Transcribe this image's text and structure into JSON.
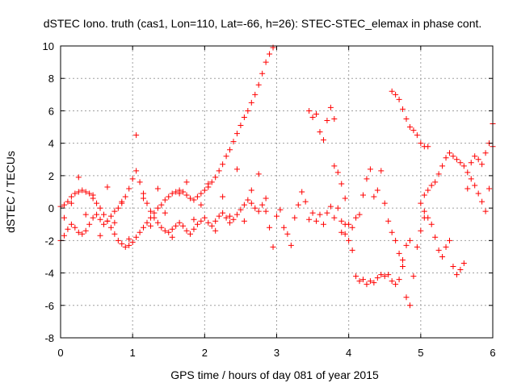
{
  "chart_data": {
    "type": "scatter",
    "title": "dSTEC Iono. truth (cas1, Lon=110, Lat=-66, h=26): STEC-STEC_elemax in phase cont.",
    "xlabel": "GPS time / hours of day 081 of year 2015",
    "ylabel": "dSTEC  / TECUs",
    "xlim": [
      0,
      6
    ],
    "ylim": [
      -8,
      10
    ],
    "xticks": [
      "0",
      "1",
      "2",
      "3",
      "4",
      "5",
      "6"
    ],
    "yticks": [
      "-8",
      "-6",
      "-4",
      "-2",
      "0",
      "2",
      "4",
      "6",
      "8",
      "10"
    ],
    "grid": true,
    "marker": "+",
    "color": "#ff0000",
    "series": [
      {
        "x": [
          0.0,
          0.05,
          0.1,
          0.15,
          0.2,
          0.25,
          0.3,
          0.35,
          0.4,
          0.45,
          0.5,
          0.55,
          0.6,
          0.65,
          0.7,
          0.75,
          0.8,
          0.85,
          0.9,
          0.95,
          1.0,
          1.05,
          1.1,
          1.15,
          1.2,
          1.25,
          1.3,
          1.35,
          1.4,
          1.45,
          1.5,
          1.55,
          1.6,
          1.65,
          1.7,
          1.75,
          1.8,
          1.85,
          1.9,
          1.95,
          2.0,
          2.05,
          2.1,
          2.15,
          2.2,
          2.25,
          2.3,
          2.35,
          2.4,
          2.45,
          2.5,
          2.55,
          2.6,
          2.65,
          2.7,
          2.75,
          2.8,
          2.85,
          2.9,
          2.95
        ],
        "y": [
          0.1,
          0.2,
          0.4,
          0.7,
          0.9,
          1.0,
          1.1,
          1.0,
          0.9,
          0.6,
          0.3,
          0.0,
          -0.4,
          -0.8,
          -1.2,
          -1.6,
          -2.0,
          -2.2,
          -2.4,
          -2.3,
          -2.1,
          -1.8,
          -1.5,
          -1.2,
          -0.9,
          -0.6,
          -0.3,
          0.0,
          0.2,
          0.5,
          0.7,
          0.9,
          1.0,
          1.1,
          1.0,
          0.8,
          0.6,
          0.5,
          0.7,
          0.9,
          1.1,
          1.3,
          1.6,
          1.9,
          2.3,
          2.7,
          3.2,
          3.6,
          4.1,
          4.6,
          5.1,
          5.6,
          6.0,
          6.5,
          7.0,
          7.6,
          8.3,
          9.0,
          9.5,
          9.9
        ]
      },
      {
        "x": [
          0.0,
          0.05,
          0.1,
          0.15,
          0.2,
          0.25,
          0.3,
          0.35,
          0.4,
          0.45,
          0.5,
          0.55,
          0.6,
          0.65,
          0.7,
          0.75,
          0.8,
          0.85,
          0.9,
          0.95,
          1.0,
          1.05,
          1.1,
          1.15,
          1.2,
          1.25,
          1.3,
          1.35,
          1.4,
          1.45,
          1.5,
          1.55,
          1.6,
          1.65,
          1.7,
          1.75,
          1.8,
          1.85,
          1.9,
          1.95,
          2.0,
          2.05,
          2.1,
          2.15,
          2.2,
          2.25,
          2.3,
          2.35,
          2.4,
          2.45,
          2.5,
          2.55,
          2.6,
          2.65,
          2.7,
          2.75,
          2.8,
          2.85,
          2.9,
          2.95
        ],
        "y": [
          -2.0,
          -1.7,
          -1.3,
          -1.0,
          -1.2,
          -1.5,
          -1.6,
          -1.4,
          -1.0,
          -0.6,
          -0.4,
          -0.7,
          -1.0,
          -0.8,
          -0.5,
          -0.2,
          0.0,
          0.3,
          0.7,
          1.2,
          1.8,
          2.3,
          1.6,
          0.9,
          0.3,
          -0.2,
          -0.6,
          -0.9,
          -1.2,
          -1.4,
          -1.5,
          -1.3,
          -1.1,
          -0.9,
          -1.1,
          -1.4,
          -1.6,
          -1.3,
          -1.0,
          -0.8,
          -0.6,
          -0.9,
          -1.1,
          -0.8,
          -0.5,
          -0.3,
          -0.6,
          -0.9,
          -0.7,
          -0.4,
          -0.1,
          0.2,
          0.5,
          0.3,
          0.0,
          -0.2,
          0.2,
          0.6,
          -1.2,
          -2.4
        ]
      },
      {
        "x": [
          0.05,
          0.15,
          0.25,
          0.35,
          0.45,
          0.55,
          0.65,
          0.75,
          0.85,
          0.95,
          1.05,
          1.15,
          1.25,
          1.35,
          1.45,
          1.55,
          1.65,
          1.75,
          1.85,
          1.95,
          2.05,
          2.15,
          2.25,
          2.35,
          2.45,
          2.55,
          2.65,
          2.75,
          2.85
        ],
        "y": [
          -0.6,
          0.3,
          1.9,
          -0.4,
          0.8,
          -1.7,
          1.3,
          -0.9,
          0.4,
          -1.9,
          4.5,
          0.6,
          -1.1,
          1.2,
          -0.3,
          -1.8,
          0.9,
          1.6,
          -0.7,
          0.2,
          1.5,
          -1.4,
          0.7,
          -0.5,
          2.4,
          -0.8,
          1.1,
          2.1,
          -0.2
        ]
      },
      {
        "x": [
          3.0,
          3.05,
          3.1,
          3.15,
          3.2,
          3.25,
          3.3,
          3.35,
          3.4,
          3.45,
          3.5,
          3.55,
          3.6,
          3.65,
          3.7,
          3.75,
          3.8,
          3.85,
          3.9,
          3.95
        ],
        "y": [
          -0.5,
          -0.1,
          -1.2,
          -1.6,
          -2.3,
          -0.6,
          0.2,
          1.0,
          0.4,
          -0.7,
          -0.3,
          -0.8,
          -0.4,
          -1.0,
          -0.3,
          0.1,
          -0.6,
          0.0,
          -1.5,
          -1.0
        ]
      },
      {
        "x": [
          3.45,
          3.5,
          3.55,
          3.6,
          3.65,
          3.7,
          3.75,
          3.8
        ],
        "y": [
          6.0,
          5.6,
          5.8,
          4.7,
          4.2,
          5.4,
          6.2,
          5.5
        ]
      },
      {
        "x": [
          3.8,
          3.85,
          3.9,
          3.95,
          4.0,
          4.05,
          4.1,
          4.15,
          4.2,
          4.25,
          4.3,
          4.35,
          4.4,
          4.45,
          4.5,
          4.55,
          4.6,
          4.65,
          4.7,
          4.75,
          4.8,
          4.85
        ],
        "y": [
          2.6,
          2.2,
          1.5,
          0.6,
          -1.0,
          -2.6,
          -4.2,
          -4.5,
          -4.4,
          -4.7,
          -4.5,
          -4.6,
          -4.3,
          -4.1,
          -4.2,
          -4.1,
          -4.5,
          -4.7,
          -4.4,
          -3.6,
          -2.3,
          -2.0
        ]
      },
      {
        "x": [
          3.9,
          3.95,
          4.0,
          4.05,
          4.1,
          4.15,
          4.2,
          4.25,
          4.3,
          4.35,
          4.4,
          4.45,
          4.5,
          4.55,
          4.6,
          4.65,
          4.7,
          4.75,
          4.8,
          4.85,
          4.9,
          4.95,
          5.0,
          5.05
        ],
        "y": [
          -0.8,
          -1.6,
          -2.0,
          -1.2,
          -0.6,
          -0.4,
          0.8,
          1.8,
          2.4,
          0.7,
          1.1,
          2.3,
          0.3,
          -0.8,
          -1.5,
          -2.0,
          -2.8,
          -3.2,
          -5.5,
          -6.0,
          -4.2,
          -2.4,
          -1.4,
          -0.6
        ]
      },
      {
        "x": [
          4.6,
          4.65,
          4.7,
          4.75,
          4.8,
          4.85,
          4.9,
          4.95,
          5.0,
          5.05,
          5.1
        ],
        "y": [
          7.2,
          7.0,
          6.7,
          6.1,
          5.5,
          5.0,
          4.8,
          4.5,
          4.0,
          3.8,
          3.8
        ]
      },
      {
        "x": [
          5.0,
          5.05,
          5.1,
          5.15,
          5.2,
          5.25,
          5.3,
          5.35,
          5.4,
          5.45,
          5.5,
          5.55,
          5.6,
          5.65,
          5.7,
          5.75,
          5.8,
          5.85,
          5.9,
          5.95,
          6.0
        ],
        "y": [
          0.3,
          0.8,
          1.1,
          1.4,
          1.6,
          2.1,
          2.6,
          3.1,
          3.4,
          3.2,
          3.0,
          2.8,
          2.6,
          2.2,
          1.8,
          1.4,
          0.9,
          0.4,
          -0.2,
          1.2,
          3.8
        ]
      },
      {
        "x": [
          5.05,
          5.1,
          5.15,
          5.2,
          5.25,
          5.3,
          5.35,
          5.4,
          5.45,
          5.5,
          5.55,
          5.6,
          5.65,
          5.7,
          5.75,
          5.8,
          5.85,
          5.9,
          5.95,
          6.0
        ],
        "y": [
          -0.2,
          -0.6,
          -1.0,
          -1.8,
          -2.6,
          -3.0,
          -2.4,
          -2.0,
          -3.6,
          -4.1,
          -3.8,
          -3.4,
          1.2,
          2.8,
          3.2,
          3.0,
          2.7,
          3.4,
          4.0,
          5.2
        ]
      }
    ]
  }
}
